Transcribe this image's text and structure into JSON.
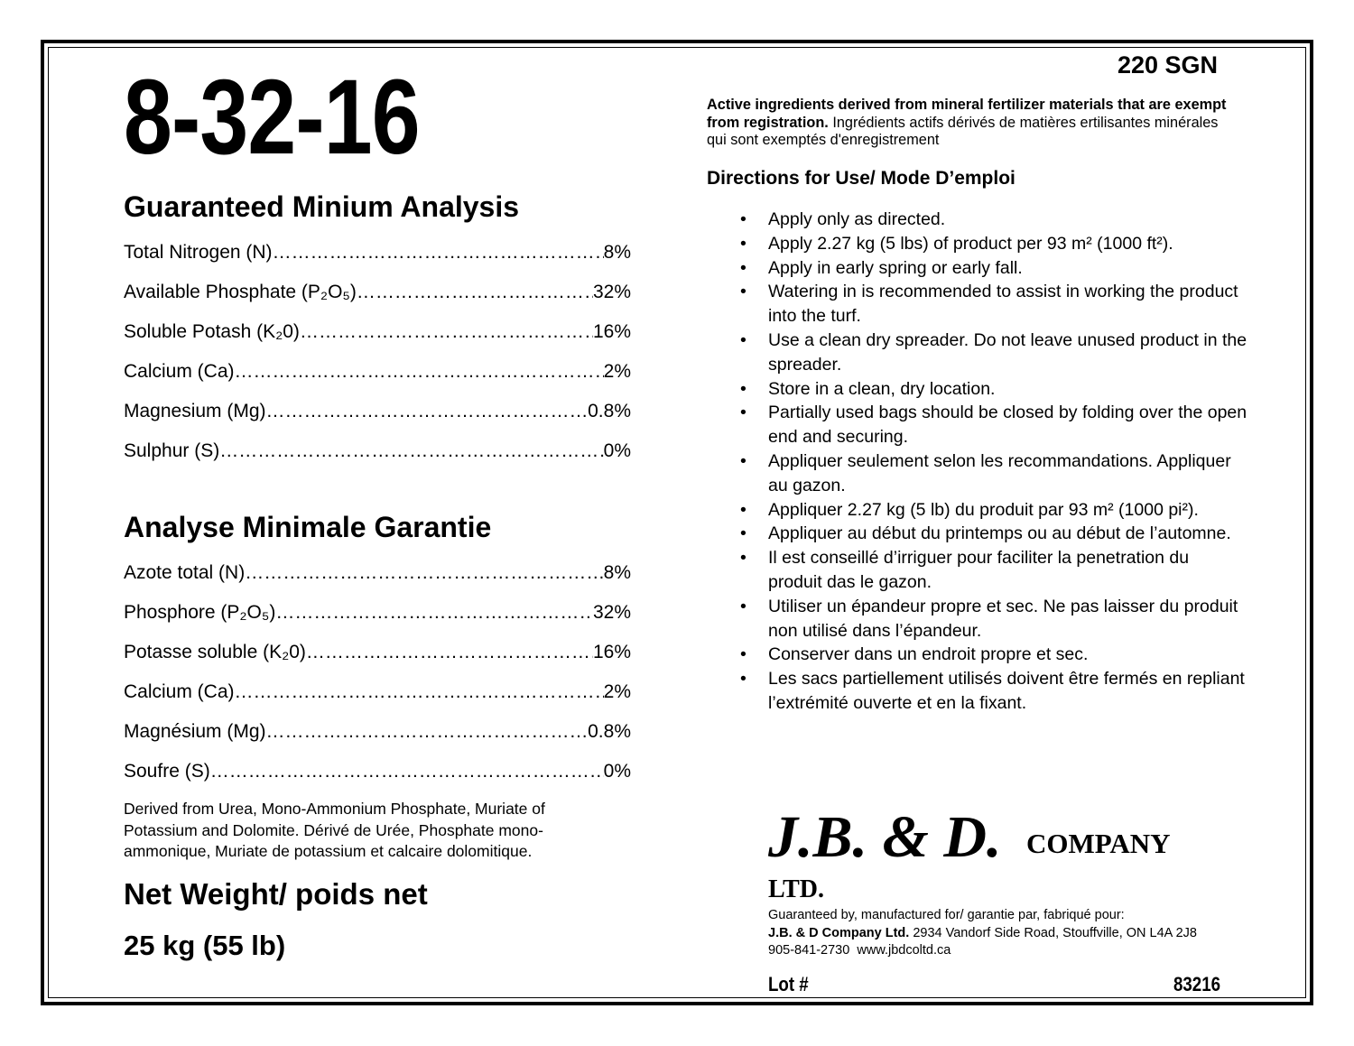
{
  "grade": "8-32-16",
  "product_code": "220 SGN",
  "english_analysis": {
    "heading": "Guaranteed Minium Analysis",
    "rows": [
      {
        "label": "Total Nitrogen (N)",
        "value": "8%"
      },
      {
        "label": "Available Phosphate (P₂O₅)",
        "value": "32%"
      },
      {
        "label": "Soluble Potash (K₂0)",
        "value": "16%"
      },
      {
        "label": "Calcium (Ca)",
        "value": "2%"
      },
      {
        "label": "Magnesium (Mg)",
        "value": "0.8%"
      },
      {
        "label": "Sulphur (S)",
        "value": "0%"
      }
    ]
  },
  "french_analysis": {
    "heading": "Analyse Minimale Garantie",
    "rows": [
      {
        "label": "Azote total (N)",
        "value": "8%"
      },
      {
        "label": "Phosphore (P₂O₅)",
        "value": "32%"
      },
      {
        "label": "Potasse soluble (K₂0)",
        "value": "16%"
      },
      {
        "label": "Calcium (Ca)",
        "value": "2%"
      },
      {
        "label": "Magnésium (Mg)",
        "value": "0.8%"
      },
      {
        "label": "Soufre (S)",
        "value": "0%"
      }
    ]
  },
  "derived_from": "Derived from Urea, Mono-Ammonium Phosphate, Muriate of Potassium and Dolomite.  Dérivé de Urée, Phosphate mono-ammonique, Muriate de potassium et calcaire dolomitique.",
  "net_weight_label": "Net Weight/ poids net",
  "net_weight": "25 kg (55 lb)",
  "active_bold": "Active ingredients derived from mineral fertilizer materials that are exempt from registration.",
  "active_rest": " Ingrédients actifs dérivés de matières ertilisantes minérales qui sont exemptés d'enregistrement",
  "directions_heading": "Directions for Use/ Mode D’emploi",
  "directions": [
    "Apply only as directed.",
    "Apply 2.27 kg (5 lbs) of product per 93 m² (1000 ft²).",
    "Apply in early spring or early fall.",
    "Watering in is recommended to assist in working the product into the turf.",
    "Use a clean dry spreader.  Do not leave unused product in the spreader.",
    "Store in a clean, dry location.",
    "Partially used bags should be closed by folding over the open end and securing.",
    "Appliquer seulement selon les recommandations. Appliquer au gazon.",
    "Appliquer 2.27 kg (5 lb) du produit par 93 m² (1000 pi²).",
    "Appliquer au début du printemps ou au début de l’automne.",
    "Il est conseillé d’irriguer pour faciliter la penetration du produit das le gazon.",
    "Utiliser un épandeur propre et sec. Ne pas laisser du produit non utilisé dans l’épandeur.",
    "Conserver dans un endroit propre et sec.",
    "Les sacs partiellement utilisés doivent être fermés en repliant l’extrémité ouverte et en la fixant."
  ],
  "company": {
    "logo": "J.B. & D.",
    "logo_company": "COMPANY",
    "logo_ltd": "LTD.",
    "guaranteed_by": "Guaranteed by, manufactured for/ garantie par, fabriqué pour:",
    "name": "J.B. & D Company Ltd.",
    "address": " 2934 Vandorf Side Road, Stouffville, ON L4A 2J8",
    "phone": "905-841-2730",
    "website": "www.jbdcoltd.ca"
  },
  "lot_label": "Lot #",
  "lot_number": "83216"
}
